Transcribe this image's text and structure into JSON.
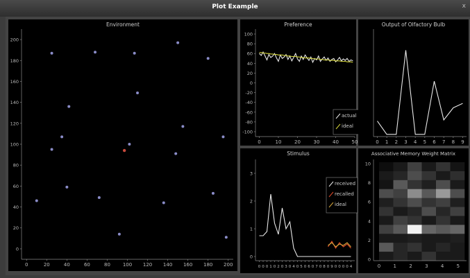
{
  "window": {
    "title": "Plot Example",
    "close_glyph": "x"
  },
  "chart_data": [
    {
      "type": "scatter",
      "title": "Environment",
      "xlim": [
        -5,
        205
      ],
      "ylim": [
        -10,
        210
      ],
      "xticks": [
        0,
        20,
        40,
        60,
        80,
        100,
        120,
        140,
        160,
        180,
        200
      ],
      "yticks": [
        0,
        20,
        40,
        60,
        80,
        100,
        120,
        140,
        160,
        180,
        200
      ],
      "point_color": "#8a8cc8",
      "agent_color": "#c84a3c",
      "points": [
        [
          25,
          187
        ],
        [
          68,
          188
        ],
        [
          107,
          187
        ],
        [
          150,
          197
        ],
        [
          180,
          182
        ],
        [
          110,
          149
        ],
        [
          42,
          136
        ],
        [
          155,
          117
        ],
        [
          35,
          107
        ],
        [
          195,
          107
        ],
        [
          102,
          100
        ],
        [
          25,
          95
        ],
        [
          148,
          91
        ],
        [
          40,
          59
        ],
        [
          72,
          49
        ],
        [
          10,
          46
        ],
        [
          136,
          44
        ],
        [
          185,
          53
        ],
        [
          92,
          14
        ],
        [
          198,
          11
        ]
      ],
      "agent": [
        97,
        94
      ]
    },
    {
      "type": "line",
      "title": "Preference",
      "xlim": [
        -2,
        50
      ],
      "ylim": [
        -110,
        110
      ],
      "xticks": [
        0,
        10,
        20,
        30,
        40,
        50
      ],
      "yticks": [
        100,
        80,
        60,
        40,
        20,
        0,
        -20,
        -40,
        -60,
        -80,
        -100
      ],
      "series": [
        {
          "name": "actual",
          "color": "#e8e8e8",
          "values": [
            60,
            56,
            63,
            55,
            47,
            58,
            52,
            55,
            60,
            51,
            44,
            57,
            50,
            53,
            58,
            48,
            55,
            45,
            52,
            60,
            49,
            44,
            55,
            48,
            57,
            51,
            46,
            53,
            42,
            50,
            47,
            55,
            44,
            49,
            53,
            46,
            51,
            44,
            48,
            50,
            43,
            47,
            52,
            45,
            49,
            46,
            50,
            44,
            47,
            45
          ]
        },
        {
          "name": "ideal",
          "color": "#d4d43a",
          "values": [
            62,
            62,
            61,
            61,
            60,
            60,
            59,
            59,
            58,
            58,
            57,
            57,
            57,
            56,
            56,
            55,
            55,
            54,
            54,
            54,
            53,
            53,
            52,
            52,
            51,
            51,
            51,
            50,
            50,
            49,
            49,
            49,
            48,
            48,
            47,
            47,
            47,
            46,
            46,
            46,
            45,
            45,
            45,
            44,
            44,
            44,
            43,
            43,
            43,
            42
          ]
        }
      ]
    },
    {
      "type": "line",
      "title": "Output of Olfactory Bulb",
      "xlim": [
        -0.4,
        9.4
      ],
      "ylim": [
        -0.02,
        0.95
      ],
      "xticks": [
        0,
        1,
        2,
        3,
        4,
        5,
        6,
        7,
        8,
        9
      ],
      "series": [
        {
          "color": "#e8e8e8",
          "values": [
            0.12,
            0.0,
            0.0,
            0.76,
            0.0,
            0.0,
            0.48,
            0.13,
            0.24,
            0.28
          ]
        }
      ]
    },
    {
      "type": "line",
      "title": "Stimulus",
      "xlim": [
        -1,
        25
      ],
      "ylim": [
        -0.15,
        3.5
      ],
      "xticks": [
        0,
        1,
        2,
        3,
        4,
        5,
        6,
        7,
        8,
        9,
        10,
        11,
        12,
        13,
        14,
        15,
        16,
        17,
        18,
        19,
        20,
        21,
        22,
        23,
        24
      ],
      "xtick_labels": [
        "0",
        "0",
        "0",
        "1",
        "0",
        "2",
        "0",
        "3",
        "0",
        "4",
        "0",
        "5",
        "0",
        "6",
        "0",
        "7",
        "0",
        "8",
        "0",
        "9",
        "0",
        "0",
        "0",
        "0",
        "4"
      ],
      "yticks": [
        0,
        1,
        2,
        3
      ],
      "series": [
        {
          "name": "received",
          "color": "#e8e8e8",
          "values": [
            0.75,
            0.75,
            0.9,
            2.25,
            1.2,
            0.8,
            1.75,
            1.0,
            1.25,
            0.3,
            0.0,
            0.0,
            0.0,
            0.0,
            0.0,
            0.0,
            0.0,
            0.0,
            0.0,
            0.0,
            0.0,
            0.0,
            0.0,
            0.0,
            0.0
          ]
        },
        {
          "name": "recalled",
          "color": "#e04a2a",
          "offset": 18,
          "values": [
            0.35,
            0.55,
            0.3,
            0.5,
            0.35,
            0.45,
            0.3
          ]
        },
        {
          "name": "ideal",
          "color": "#d4a43a",
          "offset": 18,
          "values": [
            0.4,
            0.5,
            0.35,
            0.45,
            0.4,
            0.5,
            0.35
          ]
        }
      ]
    },
    {
      "type": "heatmap",
      "title": "Associative Memory Weight Matrix",
      "xticks": [
        0,
        1,
        2,
        3,
        4,
        5
      ],
      "yticks": [
        0,
        2,
        4,
        6,
        8,
        10
      ],
      "rows": [
        [
          0.05,
          0.1,
          0.25,
          0.1,
          0.2,
          0.08
        ],
        [
          0.1,
          0.15,
          0.3,
          0.2,
          0.1,
          0.18
        ],
        [
          0.08,
          0.35,
          0.2,
          0.12,
          0.3,
          0.1
        ],
        [
          0.3,
          0.25,
          0.55,
          0.35,
          0.6,
          0.3
        ],
        [
          0.12,
          0.2,
          0.3,
          0.2,
          0.25,
          0.12
        ],
        [
          0.2,
          0.1,
          0.15,
          0.3,
          0.15,
          0.25
        ],
        [
          0.1,
          0.25,
          0.2,
          0.1,
          0.2,
          0.1
        ],
        [
          0.25,
          0.35,
          0.95,
          0.4,
          0.35,
          0.4
        ],
        [
          0.1,
          0.1,
          0.12,
          0.1,
          0.1,
          0.12
        ],
        [
          0.35,
          0.15,
          0.2,
          0.1,
          0.15,
          0.1
        ],
        [
          0.1,
          0.15,
          0.1,
          0.2,
          0.1,
          0.1
        ]
      ]
    }
  ]
}
